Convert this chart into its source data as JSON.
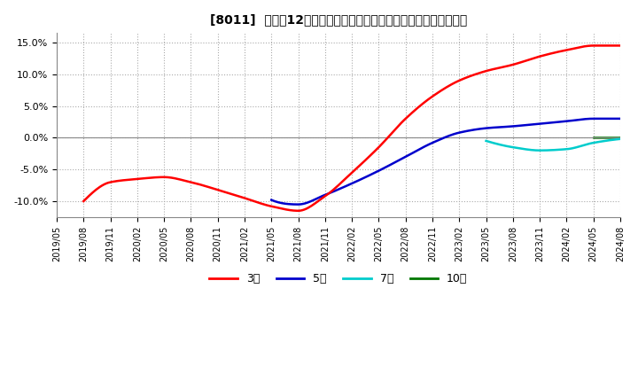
{
  "title": "[8011]  売上高12か月移動合計の対前年同期増減率の平均値の推移",
  "ylim": [
    -0.125,
    0.165
  ],
  "yticks": [
    -0.1,
    -0.05,
    0.0,
    0.05,
    0.1,
    0.15
  ],
  "ytick_labels": [
    "-10.0%",
    "-5.0%",
    "0.0%",
    "5.0%",
    "10.0%",
    "15.0%"
  ],
  "line_colors": {
    "3y": "#ff0000",
    "5y": "#0000cc",
    "7y": "#00cccc",
    "10y": "#007700"
  },
  "legend_labels": [
    "3年",
    "5年",
    "7年",
    "10年"
  ],
  "background_color": "#ffffff",
  "grid_color": "#aaaaaa"
}
